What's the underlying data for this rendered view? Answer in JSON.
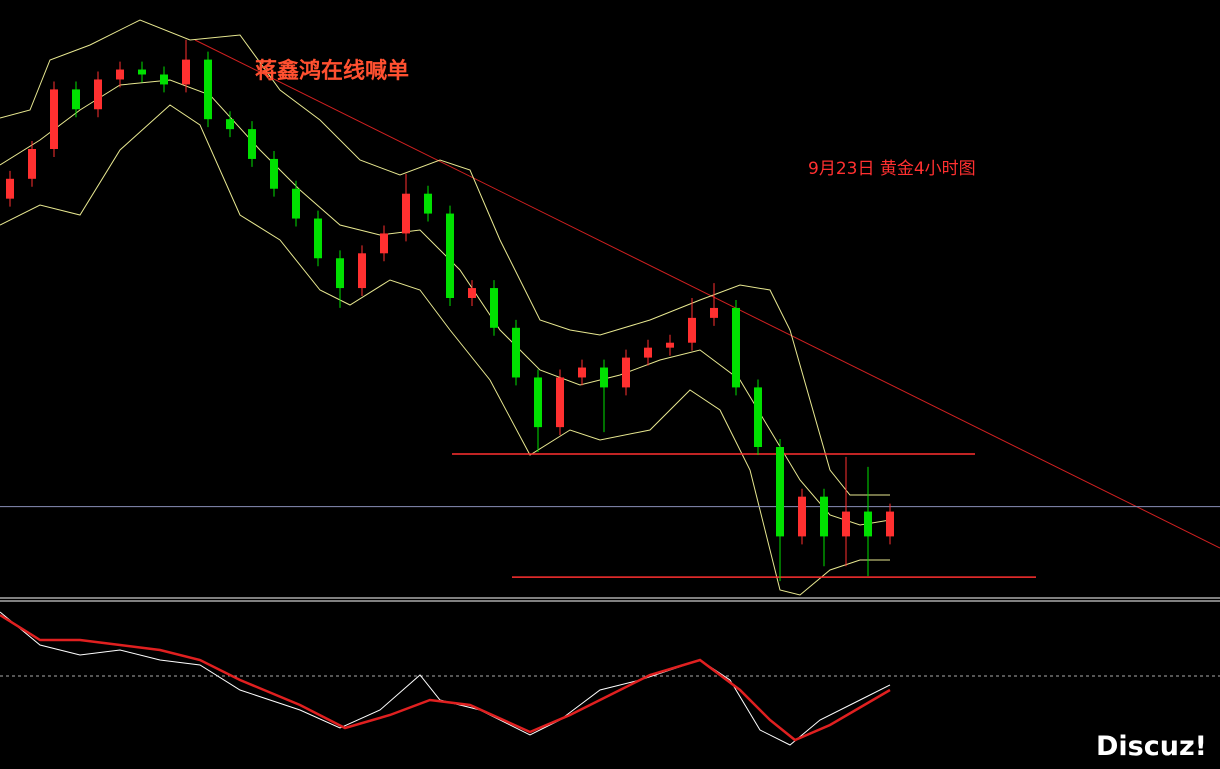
{
  "chart_data": {
    "type": "candlestick",
    "title": "蒋鑫鸿在线喊单",
    "subtitle": "9月23日 黄金4小时图",
    "watermark": "Discuz!",
    "up_color": "#ff3030",
    "down_color": "#00e000",
    "ylim": [
      0,
      600
    ],
    "levels": [
      143,
      19
    ],
    "level_color": "#ff3030",
    "current": 90,
    "current_color": "#8a8fb8",
    "candles": [
      [
        400,
        428,
        392,
        420
      ],
      [
        420,
        458,
        412,
        450
      ],
      [
        450,
        518,
        442,
        510
      ],
      [
        510,
        518,
        482,
        490
      ],
      [
        490,
        528,
        482,
        520
      ],
      [
        520,
        538,
        512,
        530
      ],
      [
        530,
        538,
        517,
        525
      ],
      [
        525,
        533,
        507,
        515
      ],
      [
        515,
        560,
        507,
        540
      ],
      [
        540,
        548,
        472,
        480
      ],
      [
        480,
        488,
        462,
        470
      ],
      [
        470,
        478,
        432,
        440
      ],
      [
        440,
        448,
        402,
        410
      ],
      [
        410,
        418,
        372,
        380
      ],
      [
        380,
        388,
        332,
        340
      ],
      [
        340,
        348,
        290,
        310
      ],
      [
        310,
        353,
        302,
        345
      ],
      [
        345,
        373,
        337,
        365
      ],
      [
        365,
        425,
        357,
        405
      ],
      [
        405,
        413,
        377,
        385
      ],
      [
        385,
        393,
        292,
        300
      ],
      [
        300,
        318,
        292,
        310
      ],
      [
        310,
        318,
        262,
        270
      ],
      [
        270,
        278,
        212,
        220
      ],
      [
        220,
        228,
        145,
        170
      ],
      [
        170,
        228,
        162,
        220
      ],
      [
        220,
        238,
        212,
        230
      ],
      [
        230,
        238,
        165,
        210
      ],
      [
        210,
        248,
        202,
        240
      ],
      [
        240,
        258,
        232,
        250
      ],
      [
        250,
        263,
        242,
        255
      ],
      [
        255,
        300,
        247,
        280
      ],
      [
        280,
        315,
        272,
        290
      ],
      [
        290,
        298,
        202,
        210
      ],
      [
        210,
        218,
        142,
        150
      ],
      [
        150,
        158,
        15,
        60
      ],
      [
        60,
        108,
        52,
        100
      ],
      [
        100,
        108,
        30,
        60
      ],
      [
        60,
        140,
        30,
        85
      ],
      [
        85,
        130,
        20,
        60
      ],
      [
        60,
        93,
        52,
        85
      ]
    ]
  }
}
